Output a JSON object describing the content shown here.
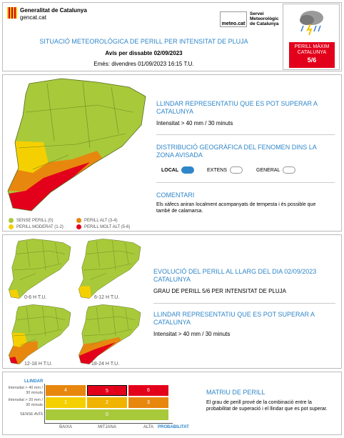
{
  "header": {
    "org": "Generalitat de Catalunya",
    "site": "gencat.cat",
    "service_logo": "meteo.cat",
    "service_lines": [
      "Servei",
      "Meteorològic",
      "de Catalunya"
    ],
    "title": "SITUACIÓ METEOROLÒGICA DE PERILL PER INTENSITAT DE PLUJA",
    "subtitle": "Avís per dissabte 02/09/2023",
    "issued": "Emès: divendres 01/09/2023 16:15 T.U.",
    "max_level": {
      "label_lines": [
        "PERILL MÀXIM",
        "CATALUNYA"
      ],
      "value": "5/6"
    }
  },
  "summary": {
    "threshold_title": "LLINDAR REPRESENTATIU QUE ES POT SUPERAR A CATALUNYA",
    "threshold": "Intensitat > 40 mm / 30 minuts",
    "distribution_title": "DISTRIBUCIÓ GEOGRÀFICA DEL FENOMEN DINS LA ZONA AVISADA",
    "distribution_options": [
      "LOCAL",
      "EXTENS",
      "GENERAL"
    ],
    "comment_title": "COMENTARI",
    "comment": "Els xàfecs aniran localment acompanyats de tempesta i és possible que també de calamarsa.",
    "legend": [
      "SENSE PERILL (0)",
      "PERILL MODERAT (1-2)",
      "PERILL ALT (3-4)",
      "PERILL MOLT ALT (5-6)"
    ]
  },
  "evolution": {
    "periods": [
      "0-6 H T.U.",
      "6-12 H T.U.",
      "12-18 H T.U.",
      "18-24 H T.U."
    ],
    "title": "EVOLUCIÓ DEL PERILL AL LLARG DEL DIA 02/09/2023 CATALUNYA",
    "level": "GRAU DE PERILL 5/6 PER INTENSITAT DE PLUJA",
    "threshold_title": "LLINDAR REPRESENTATIU QUE ES POT SUPERAR A CATALUNYA",
    "threshold": "Intensitat > 40 mm / 30 minuts"
  },
  "matrix": {
    "y_title": "LLINDAR",
    "row_labels": [
      "Intensitat > 40 mm / 30 minuts",
      "Intensitat > 20 mm / 30 minuts",
      "SENSE AVÍS"
    ],
    "rows": [
      [
        4,
        5,
        6
      ],
      [
        1,
        2,
        3
      ],
      [
        0
      ]
    ],
    "columns": [
      "BAIXA",
      "MITJANA",
      "ALTA"
    ],
    "x_title": "PROBABILITAT",
    "title": "MATRIU DE PERILL",
    "text": "El grau de perill prové de la combinació entre la probabilitat de superació i el llindar que es pot superar."
  }
}
